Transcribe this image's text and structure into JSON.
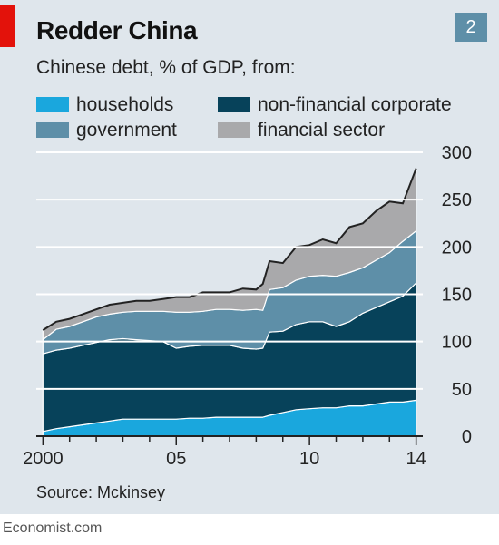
{
  "header": {
    "title": "Redder China",
    "badge": "2",
    "subtitle": "Chinese debt, % of GDP, from:"
  },
  "legend": [
    {
      "label": "households",
      "color": "#1aa7dd"
    },
    {
      "label": "non-financial corporate",
      "color": "#07425a"
    },
    {
      "label": "government",
      "color": "#5e8fa8"
    },
    {
      "label": "financial sector",
      "color": "#a9a9ab"
    }
  ],
  "source": "Source: Mckinsey",
  "footer": "Economist.com",
  "chart_data": {
    "type": "area",
    "stacked": true,
    "ylim": [
      0,
      300
    ],
    "y_ticks": [
      "0",
      "50",
      "100",
      "150",
      "200",
      "250",
      "300"
    ],
    "x_tick_labels": [
      {
        "value": 2000,
        "label": "2000"
      },
      {
        "value": 2005,
        "label": "05"
      },
      {
        "value": 2010,
        "label": "10"
      },
      {
        "value": 2014,
        "label": "14"
      }
    ],
    "xlim": [
      1999.75,
      2014.25
    ],
    "y_axis_position": "right",
    "grid": true,
    "x": [
      2000.0,
      2000.5,
      2001.0,
      2001.5,
      2002.0,
      2002.5,
      2003.0,
      2003.5,
      2004.0,
      2004.5,
      2005.0,
      2005.5,
      2006.0,
      2006.5,
      2007.0,
      2007.5,
      2008.0,
      2008.25,
      2008.5,
      2009.0,
      2009.5,
      2010.0,
      2010.5,
      2011.0,
      2011.5,
      2012.0,
      2012.5,
      2013.0,
      2013.5,
      2014.0
    ],
    "series": [
      {
        "name": "households",
        "color": "#1aa7dd",
        "values": [
          5,
          8,
          10,
          12,
          14,
          16,
          18,
          18,
          18,
          18,
          18,
          19,
          19,
          20,
          20,
          20,
          20,
          20,
          22,
          25,
          28,
          29,
          30,
          30,
          32,
          32,
          34,
          36,
          36,
          38
        ]
      },
      {
        "name": "non-financial corporate",
        "color": "#07425a",
        "values": [
          82,
          83,
          83,
          84,
          85,
          86,
          85,
          84,
          83,
          82,
          75,
          76,
          77,
          76,
          76,
          73,
          72,
          73,
          88,
          86,
          90,
          92,
          91,
          86,
          89,
          98,
          102,
          106,
          112,
          124
        ]
      },
      {
        "name": "government",
        "color": "#5e8fa8",
        "values": [
          15,
          22,
          23,
          25,
          27,
          27,
          28,
          30,
          31,
          32,
          38,
          36,
          36,
          38,
          38,
          40,
          42,
          40,
          45,
          46,
          47,
          48,
          49,
          53,
          52,
          48,
          50,
          52,
          58,
          55
        ]
      },
      {
        "name": "financial sector",
        "color": "#a9a9ab",
        "values": [
          10,
          8,
          8,
          8,
          8,
          10,
          10,
          11,
          11,
          13,
          16,
          16,
          20,
          18,
          18,
          23,
          21,
          28,
          30,
          26,
          35,
          33,
          38,
          35,
          48,
          47,
          52,
          54,
          40,
          66
        ]
      }
    ]
  }
}
